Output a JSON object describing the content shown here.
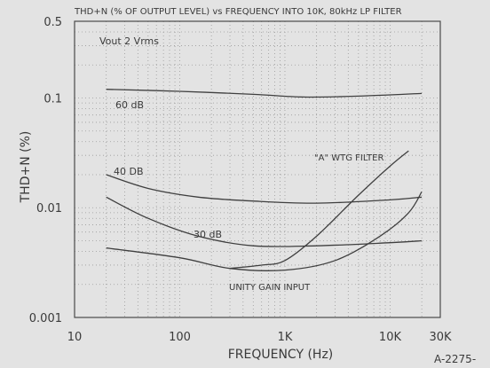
{
  "chart_data": {
    "type": "line",
    "title": "THD+N (% OF OUTPUT LEVEL) vs FREQUENCY  INTO 10K, 80kHz LP FILTER",
    "xlabel": "FREQUENCY  (Hz)",
    "ylabel": "THD+N (%)",
    "x_scale": "log",
    "y_scale": "log",
    "xlim": [
      10,
      30000
    ],
    "ylim": [
      0.001,
      0.5
    ],
    "x_ticks": [
      {
        "value": 10,
        "label": "10"
      },
      {
        "value": 100,
        "label": "100"
      },
      {
        "value": 1000,
        "label": "1K"
      },
      {
        "value": 10000,
        "label": "10K"
      },
      {
        "value": 30000,
        "label": "30K"
      }
    ],
    "y_ticks": [
      {
        "value": 0.5,
        "label": "0.5"
      },
      {
        "value": 0.1,
        "label": "0.1"
      },
      {
        "value": 0.01,
        "label": "0.01"
      },
      {
        "value": 0.001,
        "label": "0.001"
      }
    ],
    "grid": true,
    "series": [
      {
        "name": "60 dB",
        "points": [
          [
            20,
            0.12
          ],
          [
            100,
            0.115
          ],
          [
            500,
            0.108
          ],
          [
            1500,
            0.102
          ],
          [
            5000,
            0.104
          ],
          [
            20000,
            0.11
          ]
        ]
      },
      {
        "name": "40 DB",
        "points": [
          [
            20,
            0.02
          ],
          [
            50,
            0.015
          ],
          [
            150,
            0.0125
          ],
          [
            500,
            0.0115
          ],
          [
            2000,
            0.011
          ],
          [
            10000,
            0.0118
          ],
          [
            20000,
            0.0125
          ]
        ]
      },
      {
        "name": "30 dB",
        "points": [
          [
            20,
            0.0125
          ],
          [
            50,
            0.008
          ],
          [
            150,
            0.0055
          ],
          [
            500,
            0.0045
          ],
          [
            2000,
            0.0045
          ],
          [
            10000,
            0.0048
          ],
          [
            20000,
            0.005
          ]
        ]
      },
      {
        "name": "\"A\" WTG FILTER",
        "points": [
          [
            300,
            0.0028
          ],
          [
            600,
            0.003
          ],
          [
            1000,
            0.0033
          ],
          [
            2000,
            0.0055
          ],
          [
            5000,
            0.013
          ],
          [
            10000,
            0.024
          ],
          [
            15000,
            0.033
          ]
        ]
      },
      {
        "name": "UNITY GAIN INPUT",
        "points": [
          [
            20,
            0.0043
          ],
          [
            100,
            0.0035
          ],
          [
            300,
            0.0028
          ],
          [
            1000,
            0.0027
          ],
          [
            3000,
            0.0033
          ],
          [
            8000,
            0.0055
          ],
          [
            15000,
            0.009
          ],
          [
            20000,
            0.014
          ]
        ]
      }
    ],
    "annotations": {
      "vout": "Vout 2 Vrms",
      "corner": "A-2275-"
    }
  }
}
